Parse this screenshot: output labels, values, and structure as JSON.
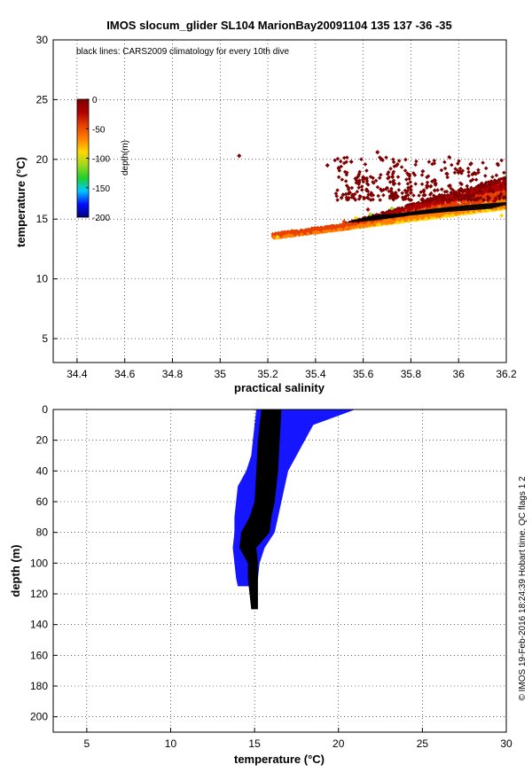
{
  "figure": {
    "title": "IMOS slocum_glider SL104 MarionBay20091104 135  137  -36  -35",
    "side_credit": "© IMOS 19-Feb-2016 18:24:39 Hobart time. QC flags 1  2"
  },
  "colors": {
    "profile_blue": "#1515ff",
    "climatology_black": "#000000",
    "colormap": [
      "#00007f",
      "#0010ff",
      "#00c8ff",
      "#1fd12a",
      "#a0d81c",
      "#ffd700",
      "#ff8000",
      "#e84000",
      "#b00000",
      "#7f0000"
    ]
  },
  "chart_data": [
    {
      "type": "scatter",
      "note": "black lines: CARS2009 climatology for every 10th dive",
      "xlabel": "practical salinity",
      "ylabel": "temperature (°C)",
      "xlim": [
        34.3,
        36.2
      ],
      "ylim": [
        3,
        30
      ],
      "xticks": [
        "34.4",
        "34.6",
        "34.8",
        "35",
        "35.2",
        "35.4",
        "35.6",
        "35.8",
        "36",
        "36.2"
      ],
      "yticks": [
        "5",
        "10",
        "15",
        "20",
        "25",
        "30"
      ],
      "grid": true,
      "colorbar": {
        "label": "depth(m)",
        "ticks": [
          "0",
          "-50",
          "-100",
          "-150",
          "-200"
        ],
        "range": [
          -200,
          0
        ],
        "placement": "upper-left"
      },
      "series": [
        {
          "points": [
            {
              "x": 35.08,
              "y": 20.3,
              "depth": -2
            },
            {
              "x": 35.24,
              "y": 13.5,
              "depth": -80
            },
            {
              "x": 35.3,
              "y": 13.6,
              "depth": -60
            },
            {
              "x": 35.38,
              "y": 13.9,
              "depth": -55
            },
            {
              "x": 35.45,
              "y": 14.3,
              "depth": -50
            },
            {
              "x": 35.52,
              "y": 14.8,
              "depth": -45
            },
            {
              "x": 35.57,
              "y": 15.1,
              "depth": -95
            },
            {
              "x": 35.63,
              "y": 15.4,
              "depth": -120
            },
            {
              "x": 35.62,
              "y": 15.8,
              "depth": -30
            },
            {
              "x": 35.72,
              "y": 15.9,
              "depth": -120
            },
            {
              "x": 35.82,
              "y": 16.2,
              "depth": -20
            },
            {
              "x": 35.92,
              "y": 16.0,
              "depth": -70
            },
            {
              "x": 36.05,
              "y": 16.1,
              "depth": -90
            },
            {
              "x": 36.15,
              "y": 16.5,
              "depth": -15
            },
            {
              "x": 36.18,
              "y": 15.3,
              "depth": -95
            },
            {
              "x": 35.45,
              "y": 19.5,
              "depth": -2
            },
            {
              "x": 35.55,
              "y": 19.8,
              "depth": -3
            },
            {
              "x": 35.66,
              "y": 20.6,
              "depth": -2
            },
            {
              "x": 35.74,
              "y": 19.5,
              "depth": -5
            },
            {
              "x": 35.85,
              "y": 19.0,
              "depth": -3
            },
            {
              "x": 35.95,
              "y": 18.8,
              "depth": -4
            },
            {
              "x": 36.05,
              "y": 19.6,
              "depth": -2
            },
            {
              "x": 36.17,
              "y": 18.3,
              "depth": -6
            },
            {
              "x": 35.6,
              "y": 18.5,
              "depth": -4
            },
            {
              "x": 35.7,
              "y": 17.6,
              "depth": -8
            },
            {
              "x": 35.8,
              "y": 17.2,
              "depth": -10
            },
            {
              "x": 35.9,
              "y": 17.4,
              "depth": -10
            },
            {
              "x": 36.1,
              "y": 17.7,
              "depth": -8
            }
          ]
        },
        {
          "name": "",
          "line": [
            {
              "x": 35.58,
              "y": 15.0
            },
            {
              "x": 35.7,
              "y": 15.2
            },
            {
              "x": 35.85,
              "y": 15.6
            },
            {
              "x": 36.0,
              "y": 15.9
            },
            {
              "x": 36.2,
              "y": 16.2
            }
          ]
        }
      ]
    },
    {
      "type": "scatter",
      "xlabel": "temperature (°C)",
      "ylabel": "depth (m)",
      "xlim": [
        3,
        30
      ],
      "ylim": [
        210,
        0
      ],
      "xticks": [
        "5",
        "10",
        "15",
        "20",
        "25",
        "30"
      ],
      "yticks": [
        "0",
        "20",
        "40",
        "60",
        "80",
        "100",
        "120",
        "140",
        "160",
        "180",
        "200"
      ],
      "grid": true,
      "series": [
        {
          "name": "",
          "profile_envelope": [
            {
              "depth": 0,
              "tmin": 15.1,
              "tmax": 21.0
            },
            {
              "depth": 10,
              "tmin": 15.0,
              "tmax": 18.5
            },
            {
              "depth": 20,
              "tmin": 14.9,
              "tmax": 18.0
            },
            {
              "depth": 30,
              "tmin": 14.8,
              "tmax": 17.5
            },
            {
              "depth": 40,
              "tmin": 14.5,
              "tmax": 17.0
            },
            {
              "depth": 50,
              "tmin": 14.0,
              "tmax": 16.8
            },
            {
              "depth": 60,
              "tmin": 13.9,
              "tmax": 16.6
            },
            {
              "depth": 70,
              "tmin": 13.8,
              "tmax": 16.4
            },
            {
              "depth": 80,
              "tmin": 13.8,
              "tmax": 16.2
            },
            {
              "depth": 90,
              "tmin": 13.7,
              "tmax": 15.6
            },
            {
              "depth": 100,
              "tmin": 13.8,
              "tmax": 15.3
            },
            {
              "depth": 110,
              "tmin": 13.9,
              "tmax": 15.2
            },
            {
              "depth": 115,
              "tmin": 14.0,
              "tmax": 15.1
            }
          ]
        },
        {
          "name": "",
          "climatology_envelope": [
            {
              "depth": 0,
              "tmin": 15.4,
              "tmax": 16.6
            },
            {
              "depth": 20,
              "tmin": 15.2,
              "tmax": 16.5
            },
            {
              "depth": 40,
              "tmin": 15.1,
              "tmax": 16.4
            },
            {
              "depth": 60,
              "tmin": 15.0,
              "tmax": 16.2
            },
            {
              "depth": 70,
              "tmin": 14.7,
              "tmax": 16.0
            },
            {
              "depth": 80,
              "tmin": 14.2,
              "tmax": 15.9
            },
            {
              "depth": 90,
              "tmin": 14.1,
              "tmax": 15.1
            },
            {
              "depth": 100,
              "tmin": 14.6,
              "tmax": 15.2
            },
            {
              "depth": 110,
              "tmin": 14.6,
              "tmax": 15.2
            },
            {
              "depth": 120,
              "tmin": 14.7,
              "tmax": 15.2
            },
            {
              "depth": 130,
              "tmin": 14.8,
              "tmax": 15.2
            }
          ]
        }
      ]
    }
  ]
}
